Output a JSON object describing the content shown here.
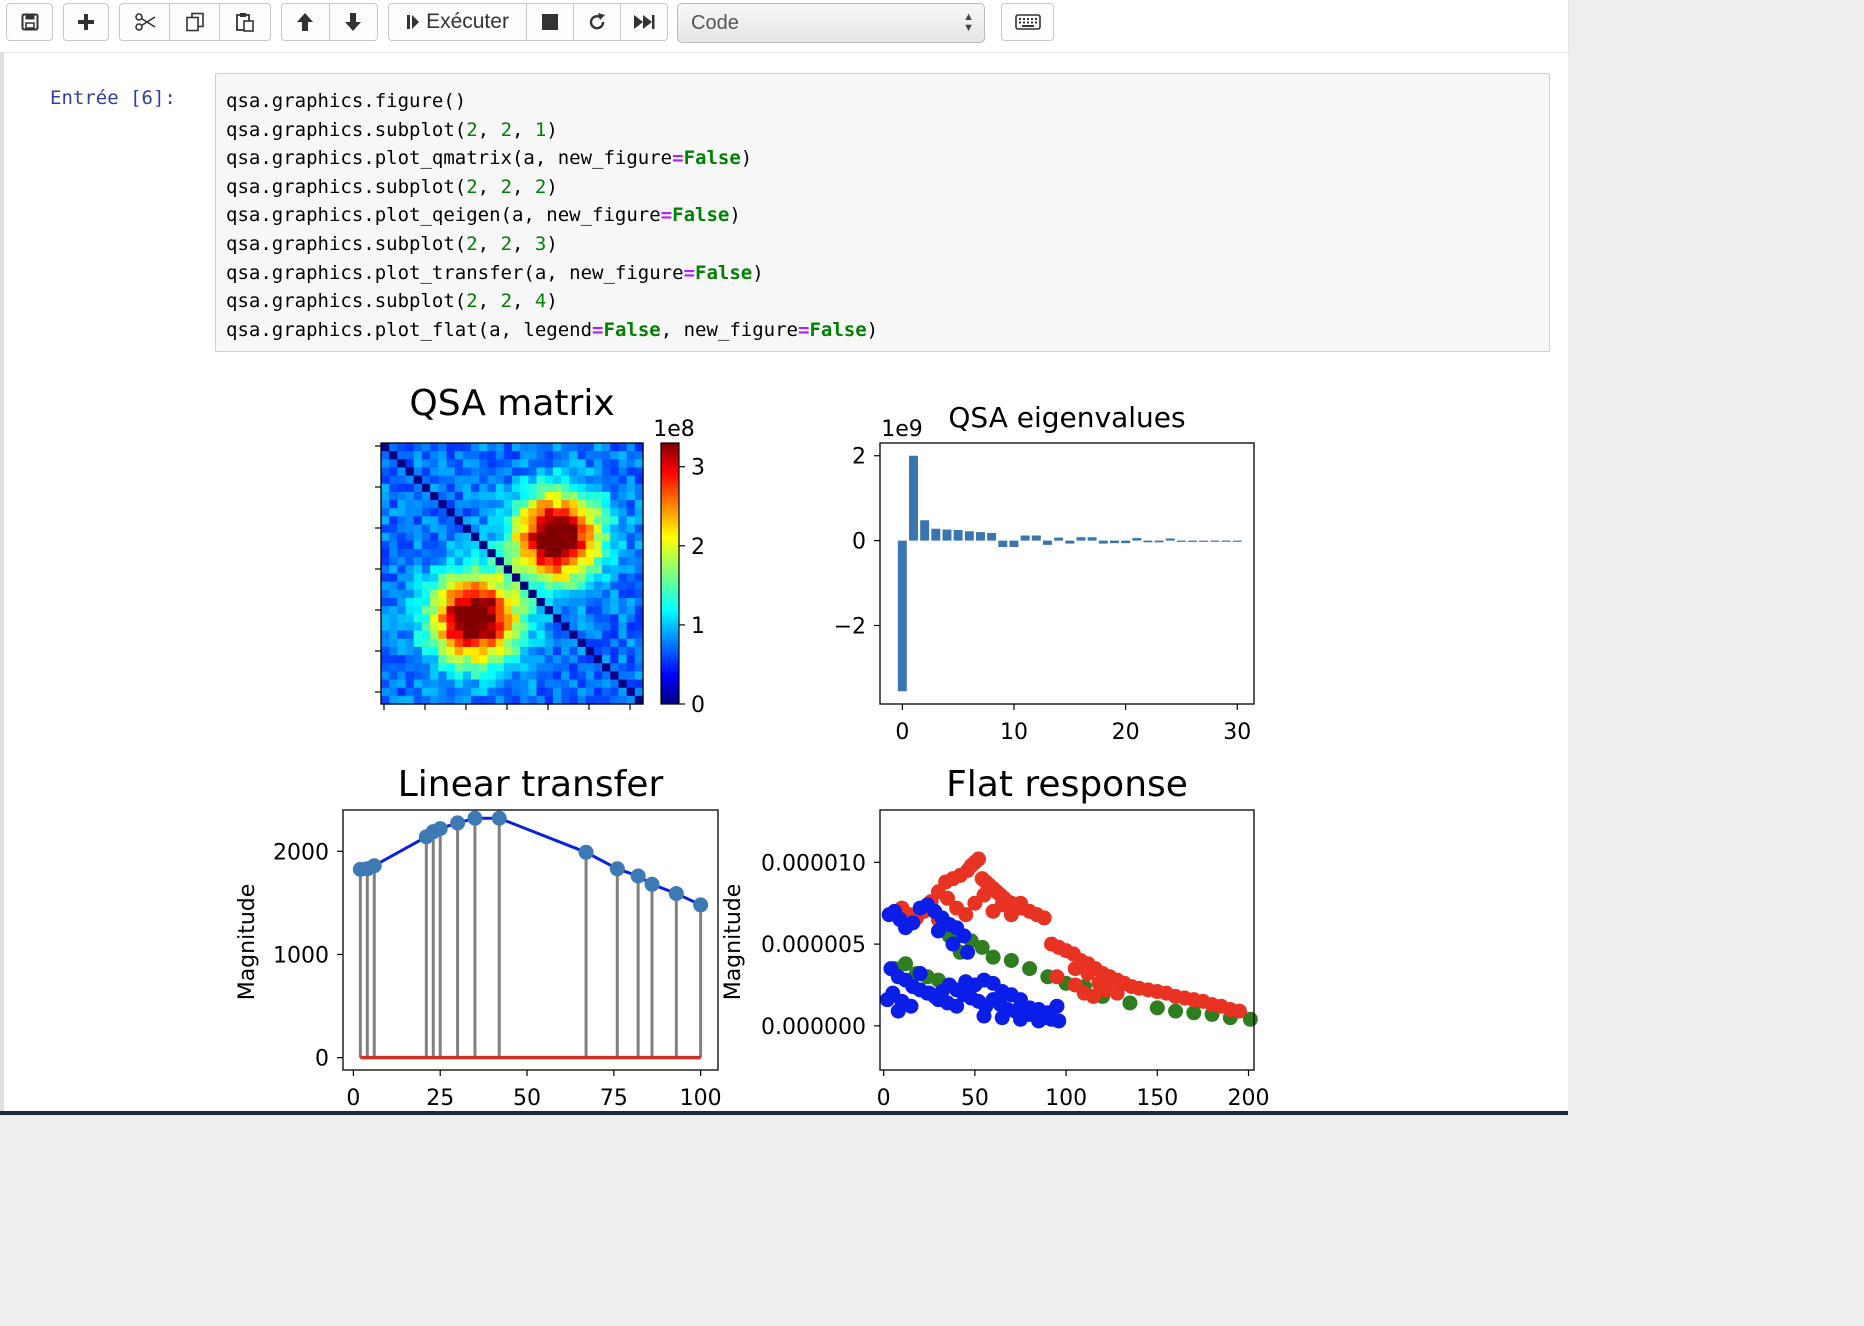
{
  "toolbar": {
    "run_label": "Exécuter",
    "cell_type": "Code"
  },
  "cell": {
    "prompt": "Entrée [6]:",
    "lines": [
      [
        {
          "t": "qsa.graphics.figure()"
        }
      ],
      [
        {
          "t": "qsa.graphics.subplot("
        },
        {
          "t": "2",
          "c": "num"
        },
        {
          "t": ", "
        },
        {
          "t": "2",
          "c": "num"
        },
        {
          "t": ", "
        },
        {
          "t": "1",
          "c": "num"
        },
        {
          "t": ")"
        }
      ],
      [
        {
          "t": "qsa.graphics.plot_qmatrix(a, new_figure"
        },
        {
          "t": "=",
          "c": "op"
        },
        {
          "t": "False",
          "c": "kw"
        },
        {
          "t": ")"
        }
      ],
      [
        {
          "t": "qsa.graphics.subplot("
        },
        {
          "t": "2",
          "c": "num"
        },
        {
          "t": ", "
        },
        {
          "t": "2",
          "c": "num"
        },
        {
          "t": ", "
        },
        {
          "t": "2",
          "c": "num"
        },
        {
          "t": ")"
        }
      ],
      [
        {
          "t": "qsa.graphics.plot_qeigen(a, new_figure"
        },
        {
          "t": "=",
          "c": "op"
        },
        {
          "t": "False",
          "c": "kw"
        },
        {
          "t": ")"
        }
      ],
      [
        {
          "t": "qsa.graphics.subplot("
        },
        {
          "t": "2",
          "c": "num"
        },
        {
          "t": ", "
        },
        {
          "t": "2",
          "c": "num"
        },
        {
          "t": ", "
        },
        {
          "t": "3",
          "c": "num"
        },
        {
          "t": ")"
        }
      ],
      [
        {
          "t": "qsa.graphics.plot_transfer(a, new_figure"
        },
        {
          "t": "=",
          "c": "op"
        },
        {
          "t": "False",
          "c": "kw"
        },
        {
          "t": ")"
        }
      ],
      [
        {
          "t": "qsa.graphics.subplot("
        },
        {
          "t": "2",
          "c": "num"
        },
        {
          "t": ", "
        },
        {
          "t": "2",
          "c": "num"
        },
        {
          "t": ", "
        },
        {
          "t": "4",
          "c": "num"
        },
        {
          "t": ")"
        }
      ],
      [
        {
          "t": "qsa.graphics.plot_flat(a, legend"
        },
        {
          "t": "=",
          "c": "op"
        },
        {
          "t": "False",
          "c": "kw"
        },
        {
          "t": ", new_figure"
        },
        {
          "t": "=",
          "c": "op"
        },
        {
          "t": "False",
          "c": "kw"
        },
        {
          "t": ")"
        }
      ]
    ]
  },
  "chart_data": [
    {
      "type": "heatmap",
      "title": "QSA matrix",
      "colorbar_exponent": "1e8",
      "colorbar_ticks": [
        "0",
        "1",
        "2",
        "3"
      ],
      "colorbar_range": [
        0,
        3.3
      ],
      "colormap": "jet",
      "size": 32,
      "blobs": [
        {
          "center_row": 21,
          "center_col": 11,
          "peak": 3.2
        },
        {
          "center_row": 11,
          "center_col": 21,
          "peak": 3.2
        }
      ],
      "diagonal_value": 0
    },
    {
      "type": "bar",
      "title": "QSA eigenvalues",
      "y_exponent": "1e9",
      "x": [
        0,
        1,
        2,
        3,
        4,
        5,
        6,
        7,
        8,
        9,
        10,
        11,
        12,
        13,
        14,
        15,
        16,
        17,
        18,
        19,
        20,
        21,
        22,
        23,
        24,
        25,
        26,
        27,
        28,
        29,
        30
      ],
      "values": [
        -3.55,
        2.0,
        0.48,
        0.28,
        0.26,
        0.25,
        0.22,
        0.2,
        0.18,
        -0.15,
        -0.15,
        0.12,
        0.12,
        -0.1,
        0.07,
        -0.07,
        0.08,
        0.08,
        -0.07,
        -0.06,
        -0.06,
        0.06,
        -0.04,
        -0.04,
        0.05,
        -0.03,
        -0.03,
        -0.02,
        -0.02,
        -0.01,
        -0.01
      ],
      "xticks": [
        0,
        10,
        20,
        30
      ],
      "yticks": [
        -2,
        0,
        2
      ],
      "ytick_labels": [
        "−2",
        "0",
        "2"
      ],
      "xlim": [
        -2,
        31.5
      ],
      "ylim": [
        -3.85,
        2.3
      ],
      "color": "#3a75b0"
    },
    {
      "type": "line",
      "title": "Linear transfer",
      "ylabel": "Magnitude",
      "x": [
        2,
        4,
        6,
        21,
        23,
        25,
        30,
        35,
        42,
        67,
        76,
        82,
        86,
        93,
        100
      ],
      "y": [
        1825,
        1830,
        1860,
        2140,
        2190,
        2220,
        2275,
        2320,
        2320,
        1990,
        1830,
        1760,
        1680,
        1590,
        1480
      ],
      "stems": true,
      "xticks": [
        0,
        25,
        50,
        75,
        100
      ],
      "yticks": [
        0,
        1000,
        2000
      ],
      "xlim": [
        -3,
        105
      ],
      "ylim": [
        -120,
        2400
      ],
      "line_color": "#0a22d8",
      "marker_color": "#3d7ab5",
      "stem_color": "#808080",
      "baseline_color": "#cc3322"
    },
    {
      "type": "scatter",
      "title": "Flat response",
      "ylabel": "Magnitude",
      "xticks": [
        0,
        50,
        100,
        150,
        200
      ],
      "yticks": [
        0,
        5e-06,
        1e-05
      ],
      "ytick_labels": [
        "0.000000",
        "0.000005",
        "0.000010"
      ],
      "xlim": [
        -2,
        203
      ],
      "ylim": [
        -2.7e-06,
        1.32e-05
      ],
      "series": [
        {
          "color": "#2e7d1e",
          "points": [
            [
              6,
              3.5e-06
            ],
            [
              12,
              3.8e-06
            ],
            [
              18,
              3.2e-06
            ],
            [
              24,
              3e-06
            ],
            [
              30,
              2.8e-06
            ],
            [
              36,
              5.5e-06
            ],
            [
              42,
              4.5e-06
            ],
            [
              48,
              5.2e-06
            ],
            [
              54,
              4.8e-06
            ],
            [
              60,
              4.2e-06
            ],
            [
              70,
              4e-06
            ],
            [
              80,
              3.5e-06
            ],
            [
              90,
              3e-06
            ],
            [
              100,
              2.6e-06
            ],
            [
              110,
              2.4e-06
            ],
            [
              120,
              1.8e-06
            ],
            [
              135,
              1.4e-06
            ],
            [
              150,
              1.1e-06
            ],
            [
              160,
              9e-07
            ],
            [
              170,
              8e-07
            ],
            [
              180,
              7e-07
            ],
            [
              190,
              5e-07
            ],
            [
              201,
              4e-07
            ]
          ]
        },
        {
          "color": "#e83323",
          "points": [
            [
              10,
              7.2e-06
            ],
            [
              14,
              6.8e-06
            ],
            [
              18,
              6.6e-06
            ],
            [
              22,
              7e-06
            ],
            [
              26,
              7.6e-06
            ],
            [
              30,
              8.2e-06
            ],
            [
              34,
              8.8e-06
            ],
            [
              38,
              9e-06
            ],
            [
              42,
              9.2e-06
            ],
            [
              46,
              9.5e-06
            ],
            [
              48,
              9.8e-06
            ],
            [
              50,
              1e-05
            ],
            [
              52,
              1.02e-05
            ],
            [
              54,
              9e-06
            ],
            [
              56,
              8.8e-06
            ],
            [
              58,
              8.6e-06
            ],
            [
              60,
              8.4e-06
            ],
            [
              62,
              8.2e-06
            ],
            [
              64,
              8e-06
            ],
            [
              66,
              7.8e-06
            ],
            [
              68,
              7.6e-06
            ],
            [
              70,
              7.5e-06
            ],
            [
              72,
              7.4e-06
            ],
            [
              74,
              7.3e-06
            ],
            [
              76,
              7.2e-06
            ],
            [
              80,
              7e-06
            ],
            [
              84,
              6.8e-06
            ],
            [
              88,
              6.6e-06
            ],
            [
              92,
              5e-06
            ],
            [
              96,
              4.8e-06
            ],
            [
              100,
              4.6e-06
            ],
            [
              104,
              4.4e-06
            ],
            [
              108,
              4e-06
            ],
            [
              112,
              3.8e-06
            ],
            [
              116,
              3.5e-06
            ],
            [
              120,
              3.2e-06
            ],
            [
              124,
              3e-06
            ],
            [
              128,
              2.8e-06
            ],
            [
              132,
              2.6e-06
            ],
            [
              136,
              2.4e-06
            ],
            [
              140,
              2.3e-06
            ],
            [
              145,
              2.2e-06
            ],
            [
              150,
              2.1e-06
            ],
            [
              155,
              2e-06
            ],
            [
              160,
              1.8e-06
            ],
            [
              165,
              1.7e-06
            ],
            [
              170,
              1.6e-06
            ],
            [
              175,
              1.5e-06
            ],
            [
              180,
              1.3e-06
            ],
            [
              185,
              1.2e-06
            ],
            [
              190,
              1e-06
            ],
            [
              195,
              9e-07
            ],
            [
              30,
              6.5e-06
            ],
            [
              35,
              7.8e-06
            ],
            [
              40,
              7.2e-06
            ],
            [
              45,
              6.8e-06
            ],
            [
              50,
              7.5e-06
            ],
            [
              55,
              8e-06
            ],
            [
              60,
              7e-06
            ],
            [
              65,
              7.4e-06
            ],
            [
              70,
              6.8e-06
            ],
            [
              75,
              7.5e-06
            ],
            [
              95,
              3e-06
            ],
            [
              105,
              2.5e-06
            ],
            [
              110,
              2e-06
            ],
            [
              115,
              1.8e-06
            ],
            [
              105,
              3.5e-06
            ],
            [
              112,
              3.2e-06
            ],
            [
              118,
              2.6e-06
            ],
            [
              122,
              2.2e-06
            ],
            [
              128,
              2e-06
            ]
          ]
        },
        {
          "color": "#0a1ee8",
          "points": [
            [
              3,
              6.8e-06
            ],
            [
              6,
              7e-06
            ],
            [
              9,
              6.5e-06
            ],
            [
              12,
              6e-06
            ],
            [
              16,
              6.3e-06
            ],
            [
              20,
              7.2e-06
            ],
            [
              24,
              7.4e-06
            ],
            [
              28,
              7e-06
            ],
            [
              32,
              6.6e-06
            ],
            [
              36,
              6.2e-06
            ],
            [
              40,
              6e-06
            ],
            [
              44,
              5.5e-06
            ],
            [
              46,
              4.5e-06
            ],
            [
              4,
              3.5e-06
            ],
            [
              8,
              3e-06
            ],
            [
              12,
              2.8e-06
            ],
            [
              16,
              2.4e-06
            ],
            [
              20,
              2.2e-06
            ],
            [
              24,
              2e-06
            ],
            [
              28,
              1.8e-06
            ],
            [
              32,
              2.1e-06
            ],
            [
              36,
              2.5e-06
            ],
            [
              40,
              2.2e-06
            ],
            [
              44,
              1.9e-06
            ],
            [
              48,
              1.7e-06
            ],
            [
              52,
              1.5e-06
            ],
            [
              56,
              1.2e-06
            ],
            [
              60,
              1.6e-06
            ],
            [
              64,
              1.3e-06
            ],
            [
              68,
              1e-06
            ],
            [
              72,
              9e-07
            ],
            [
              76,
              8e-07
            ],
            [
              80,
              7e-07
            ],
            [
              84,
              6e-07
            ],
            [
              88,
              5e-07
            ],
            [
              92,
              4e-07
            ],
            [
              96,
              3e-07
            ],
            [
              5,
              2e-06
            ],
            [
              10,
              1.5e-06
            ],
            [
              15,
              1.2e-06
            ],
            [
              20,
              3.2e-06
            ],
            [
              25,
              2e-06
            ],
            [
              30,
              1.6e-06
            ],
            [
              35,
              1.4e-06
            ],
            [
              40,
              1.2e-06
            ],
            [
              45,
              2.7e-06
            ],
            [
              50,
              2.5e-06
            ],
            [
              55,
              2.8e-06
            ],
            [
              60,
              2.6e-06
            ],
            [
              65,
              2.1e-06
            ],
            [
              70,
              1.9e-06
            ],
            [
              75,
              1.6e-06
            ],
            [
              80,
              1.1e-06
            ],
            [
              85,
              1e-06
            ],
            [
              90,
              8e-07
            ],
            [
              95,
              1.2e-06
            ],
            [
              55,
              6e-07
            ],
            [
              65,
              5e-07
            ],
            [
              75,
              4e-07
            ],
            [
              85,
              3e-07
            ],
            [
              8,
              9e-07
            ],
            [
              2,
              1.6e-06
            ],
            [
              30,
              5.8e-06
            ],
            [
              38,
              5e-06
            ]
          ]
        }
      ]
    }
  ]
}
